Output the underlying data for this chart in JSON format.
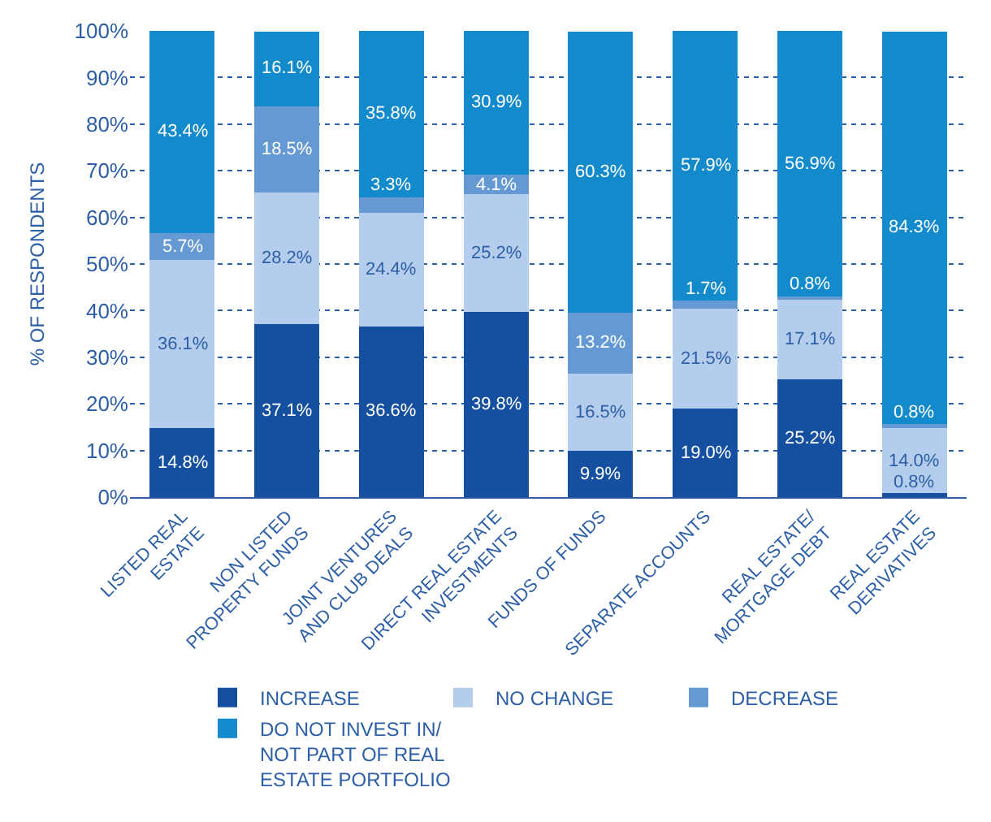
{
  "chart_data": {
    "type": "bar",
    "stacked": true,
    "ylabel": "% OF RESPONDENTS",
    "categories": [
      "LISTED REAL\nESTATE",
      "NON LISTED\nPROPERTY FUNDS",
      "JOINT VENTURES\nAND CLUB DEALS",
      "DIRECT REAL ESTATE\nINVESTMENTS",
      "FUNDS OF FUNDS",
      "SEPARATE ACCOUNTS",
      "REAL ESTATE/\nMORTGAGE DEBT",
      "REAL ESTATE\nDERIVATIVES"
    ],
    "series": [
      {
        "name": "INCREASE",
        "color": "#1550a0",
        "values": [
          14.8,
          37.1,
          36.6,
          39.8,
          9.9,
          19.0,
          25.2,
          0.8
        ],
        "value_labels": [
          "14.8%",
          "37.1%",
          "36.6%",
          "39.8%",
          "9.9%",
          "19.0%",
          "25.2%",
          "0.8%"
        ]
      },
      {
        "name": "NO CHANGE",
        "color": "#b5cdec",
        "values": [
          36.1,
          28.2,
          24.4,
          25.2,
          16.5,
          21.5,
          17.1,
          14.0
        ],
        "value_labels": [
          "36.1%",
          "28.2%",
          "24.4%",
          "25.2%",
          "16.5%",
          "21.5%",
          "17.1%",
          "14.0%"
        ]
      },
      {
        "name": "DECREASE",
        "color": "#6499d3",
        "values": [
          5.7,
          18.5,
          3.3,
          4.1,
          13.2,
          1.7,
          0.8,
          0.8
        ],
        "value_labels": [
          "5.7%",
          "18.5%",
          "3.3%",
          "4.1%",
          "13.2%",
          "1.7%",
          "0.8%",
          "0.8%"
        ]
      },
      {
        "name": "DO NOT INVEST IN/\nNOT PART OF REAL\nESTATE PORTFOLIO",
        "color": "#128acb",
        "values": [
          43.4,
          16.1,
          35.8,
          30.9,
          60.3,
          57.9,
          56.9,
          84.3
        ],
        "value_labels": [
          "43.4%",
          "16.1%",
          "35.8%",
          "30.9%",
          "60.3%",
          "57.9%",
          "56.9%",
          "84.3%"
        ]
      }
    ],
    "ylim": [
      0,
      100
    ],
    "yticks": [
      {
        "value": 0,
        "label": "0%"
      },
      {
        "value": 10,
        "label": "10%"
      },
      {
        "value": 20,
        "label": "20%"
      },
      {
        "value": 30,
        "label": "30%"
      },
      {
        "value": 40,
        "label": "40%"
      },
      {
        "value": 50,
        "label": "50%"
      },
      {
        "value": 60,
        "label": "60%"
      },
      {
        "value": 70,
        "label": "70%"
      },
      {
        "value": 80,
        "label": "80%"
      },
      {
        "value": 90,
        "label": "90%"
      },
      {
        "value": 100,
        "label": "100%"
      }
    ],
    "grid": "y",
    "legend": "bottom"
  }
}
